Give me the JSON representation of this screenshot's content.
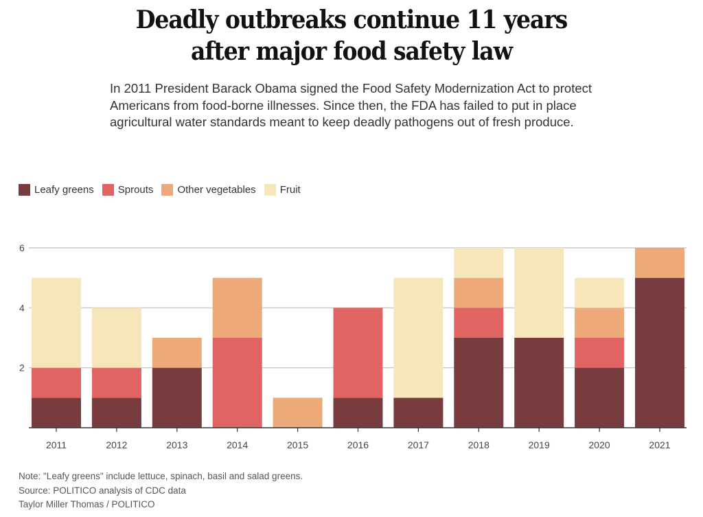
{
  "header": {
    "title_line1": "Deadly outbreaks continue 11 years",
    "title_line2": "after major food safety law",
    "subtitle": "In 2011 President Barack Obama signed the Food Safety Modernization Act to protect Americans from food-borne illnesses. Since then, the FDA has failed to put in place agricultural water standards meant to keep deadly pathogens out of fresh produce."
  },
  "legend": [
    {
      "label": "Leafy greens",
      "color": "#783c3e"
    },
    {
      "label": "Sprouts",
      "color": "#e06461"
    },
    {
      "label": "Other vegetables",
      "color": "#eda978"
    },
    {
      "label": "Fruit",
      "color": "#f6e6ba"
    }
  ],
  "chart_data": {
    "type": "bar",
    "stacked": true,
    "title": "Deadly outbreaks continue 11 years after major food safety law",
    "xlabel": "",
    "ylabel": "",
    "categories": [
      "2011",
      "2012",
      "2013",
      "2014",
      "2015",
      "2016",
      "2017",
      "2018",
      "2019",
      "2020",
      "2021"
    ],
    "series": [
      {
        "name": "Leafy greens",
        "color": "#783c3e",
        "values": [
          1,
          1,
          2,
          0,
          0,
          1,
          1,
          3,
          3,
          2,
          5
        ]
      },
      {
        "name": "Sprouts",
        "color": "#e06461",
        "values": [
          1,
          1,
          0,
          3,
          0,
          3,
          0,
          1,
          0,
          1,
          0
        ]
      },
      {
        "name": "Other vegetables",
        "color": "#eda978",
        "values": [
          0,
          0,
          1,
          2,
          1,
          0,
          0,
          1,
          0,
          1,
          1
        ]
      },
      {
        "name": "Fruit",
        "color": "#f6e6ba",
        "values": [
          3,
          2,
          0,
          0,
          0,
          0,
          4,
          1,
          3,
          1,
          0
        ]
      }
    ],
    "ylim": [
      0,
      6
    ],
    "yticks": [
      2,
      4,
      6
    ],
    "ytick_labels": [
      "2",
      "4",
      "6"
    ],
    "grid": true,
    "legend_position": "top-left"
  },
  "footer": {
    "note": "Note: \"Leafy greens\" include lettuce, spinach, basil and salad greens.",
    "source": "Source: POLITICO analysis of CDC data",
    "credit": "Taylor Miller Thomas / POLITICO"
  }
}
